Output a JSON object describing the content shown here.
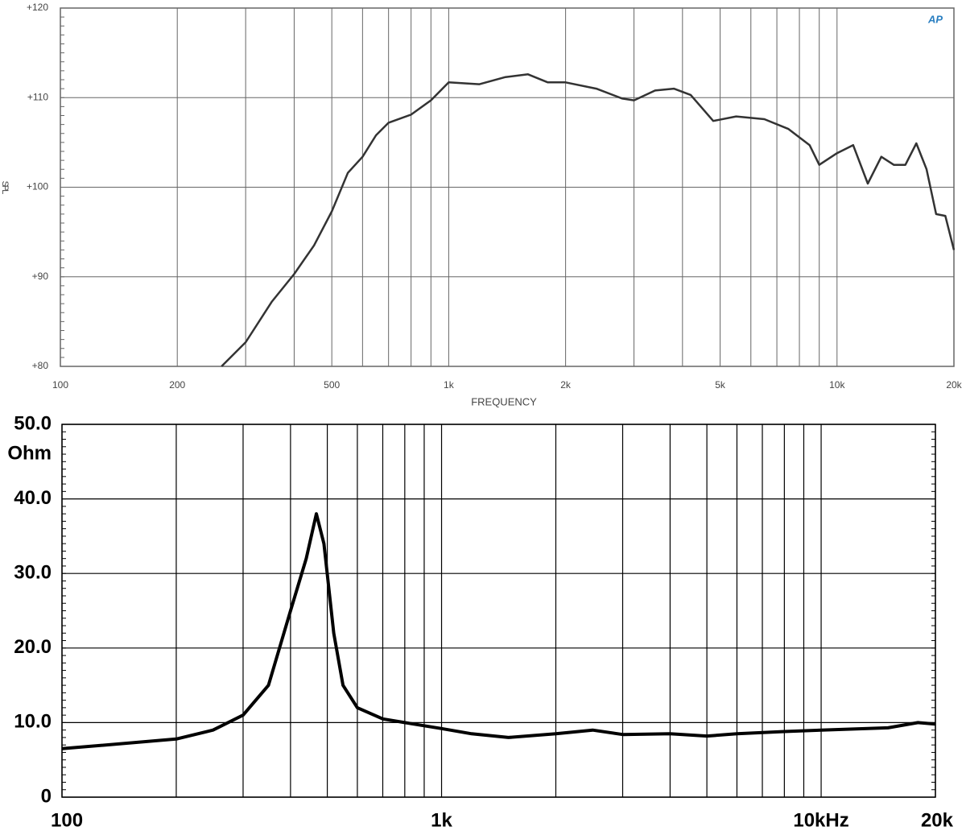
{
  "chart_data": [
    {
      "type": "line",
      "ylabel": "SPL",
      "xlabel": "FREQUENCY",
      "logo": "AP",
      "xscale": "log",
      "grid": true,
      "xlim": [
        100,
        20000
      ],
      "ylim": [
        80,
        120
      ],
      "xticks": [
        {
          "value": 100,
          "label": "100"
        },
        {
          "value": 200,
          "label": "200"
        },
        {
          "value": 500,
          "label": "500"
        },
        {
          "value": 1000,
          "label": "1k"
        },
        {
          "value": 2000,
          "label": "2k"
        },
        {
          "value": 5000,
          "label": "5k"
        },
        {
          "value": 10000,
          "label": "10k"
        },
        {
          "value": 20000,
          "label": "20k"
        }
      ],
      "xminor": [
        300,
        400,
        600,
        700,
        800,
        900,
        3000,
        4000,
        6000,
        7000,
        8000,
        9000
      ],
      "yticks": [
        {
          "value": 80,
          "label": "+80"
        },
        {
          "value": 90,
          "label": "+90"
        },
        {
          "value": 100,
          "label": "+100"
        },
        {
          "value": 110,
          "label": "+110"
        },
        {
          "value": 120,
          "label": "+120"
        }
      ],
      "series": [
        {
          "color": "#333333",
          "x": [
            260,
            300,
            350,
            400,
            450,
            500,
            550,
            600,
            650,
            700,
            800,
            900,
            1000,
            1200,
            1400,
            1600,
            1800,
            2000,
            2400,
            2800,
            3000,
            3400,
            3800,
            4200,
            4800,
            5500,
            6500,
            7500,
            8500,
            9000,
            10000,
            11000,
            12000,
            13000,
            14000,
            15000,
            16000,
            17000,
            18000,
            19000,
            20000
          ],
          "values": [
            80,
            82.7,
            87.2,
            90.3,
            93.5,
            97.3,
            101.6,
            103.4,
            105.8,
            107.2,
            108.1,
            109.7,
            111.7,
            111.5,
            112.3,
            112.6,
            111.7,
            111.7,
            111,
            109.9,
            109.7,
            110.8,
            111,
            110.3,
            107.4,
            107.9,
            107.6,
            106.5,
            104.7,
            102.5,
            103.8,
            104.7,
            100.4,
            103.4,
            102.5,
            102.5,
            104.9,
            102,
            97,
            96.8,
            93
          ]
        }
      ]
    },
    {
      "type": "line",
      "ylabel": "Ohm",
      "xscale": "log",
      "grid": true,
      "xlim": [
        100,
        20000
      ],
      "ylim": [
        0,
        50
      ],
      "xticks": [
        {
          "value": 100,
          "label": "100"
        },
        {
          "value": 1000,
          "label": "1k"
        },
        {
          "value": 10000,
          "label": "10kHz"
        },
        {
          "value": 20000,
          "label": "20k"
        }
      ],
      "xminor": [
        200,
        300,
        400,
        500,
        600,
        700,
        800,
        900,
        2000,
        3000,
        4000,
        5000,
        6000,
        7000,
        8000,
        9000
      ],
      "yticks": [
        0,
        {
          "value": 10,
          "label": "10.0"
        },
        {
          "value": 20,
          "label": "20.0"
        },
        {
          "value": 30,
          "label": "30.0"
        },
        {
          "value": 40,
          "label": "40.0"
        },
        {
          "value": 50,
          "label": "50.0"
        }
      ],
      "series": [
        {
          "color": "#000000",
          "x": [
            100,
            200,
            250,
            300,
            350,
            400,
            440,
            468,
            490,
            520,
            550,
            600,
            700,
            800,
            1000,
            1200,
            1500,
            2000,
            2500,
            3000,
            4000,
            5000,
            6000,
            8000,
            10000,
            15000,
            18000,
            20000
          ],
          "values": [
            6.5,
            7.8,
            9,
            11,
            15,
            25,
            32,
            38,
            34,
            22,
            15,
            12,
            10.5,
            10,
            9.2,
            8.5,
            8,
            8.5,
            9,
            8.4,
            8.5,
            8.2,
            8.5,
            8.8,
            9,
            9.3,
            10,
            9.8
          ]
        }
      ]
    }
  ]
}
